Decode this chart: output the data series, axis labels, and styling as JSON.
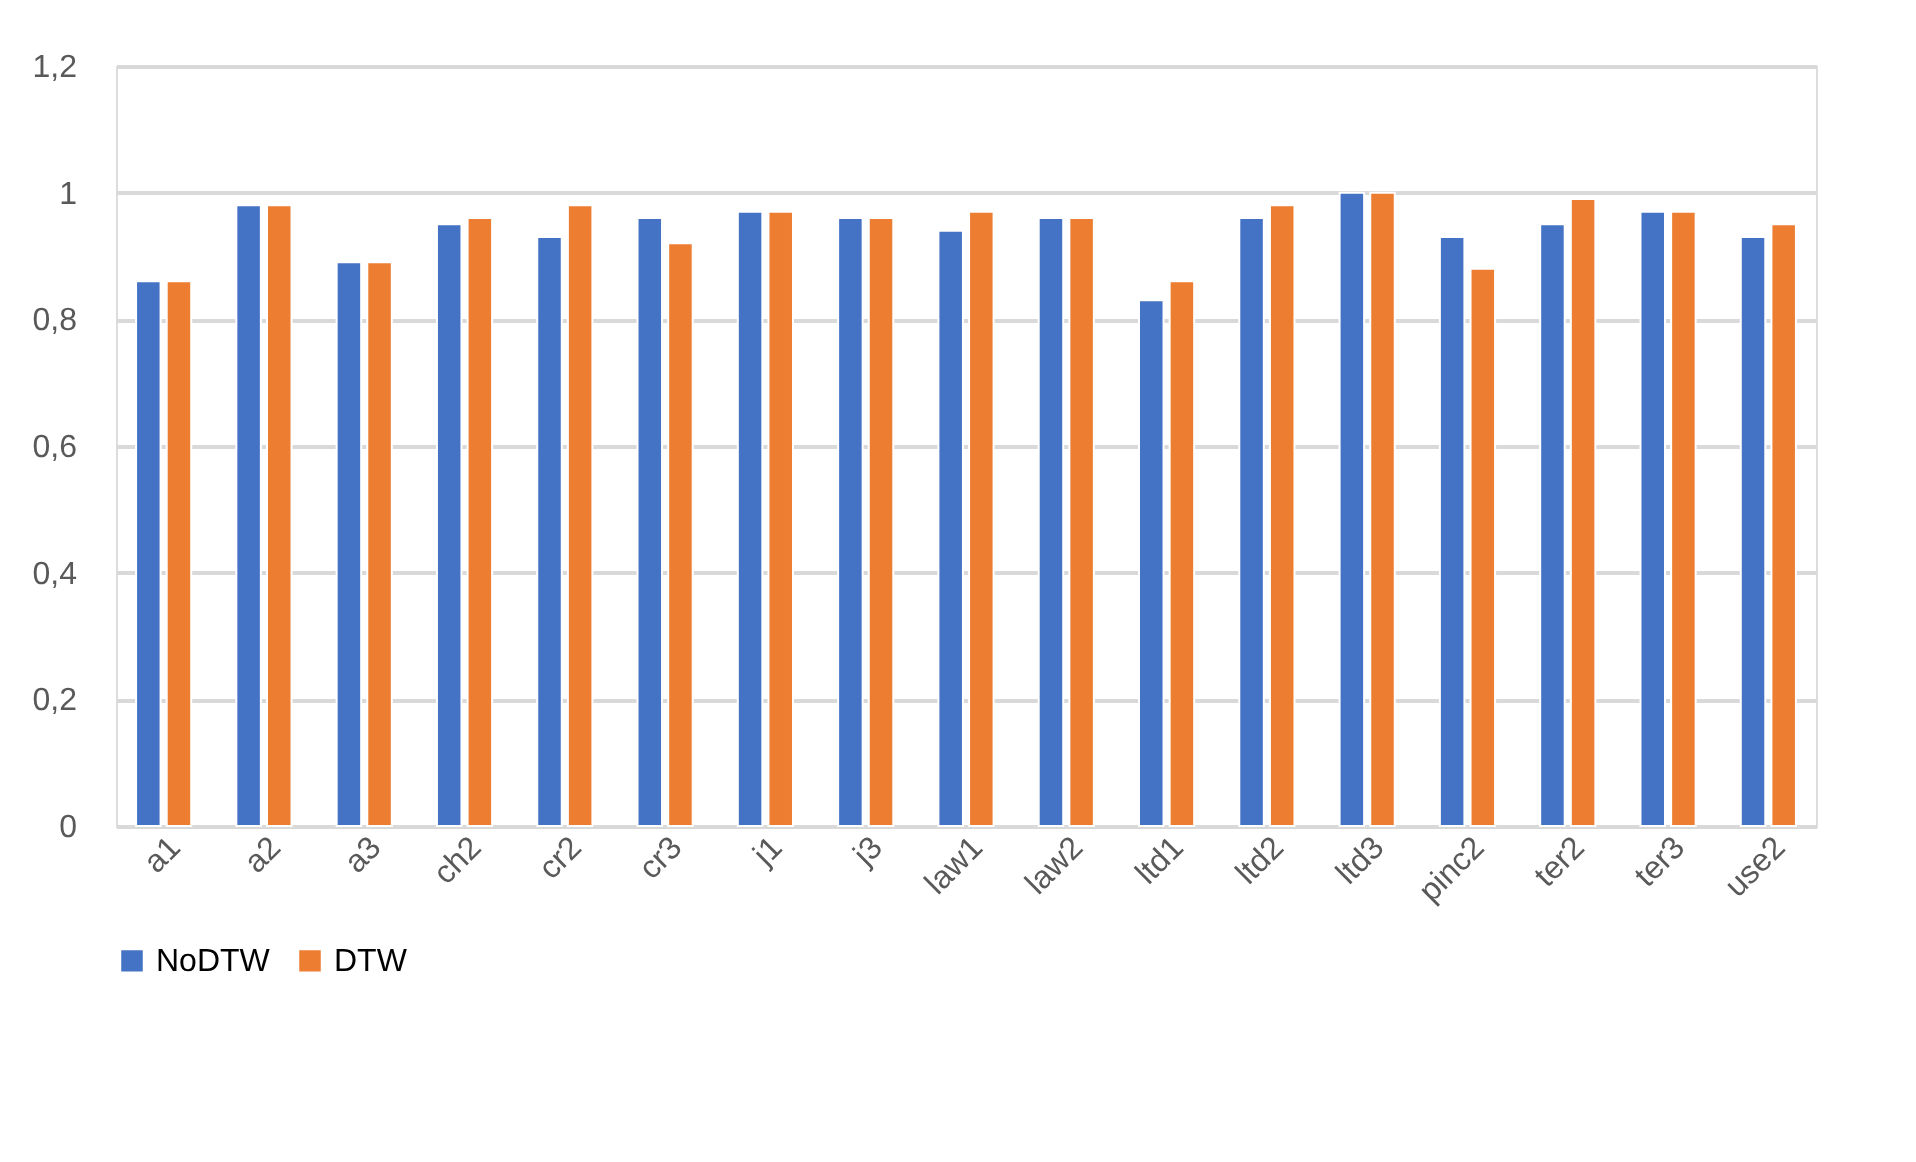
{
  "chart_data": {
    "type": "bar",
    "categories": [
      "a1",
      "a2",
      "a3",
      "ch2",
      "cr2",
      "cr3",
      "j1",
      "j3",
      "law1",
      "law2",
      "ltd1",
      "ltd2",
      "ltd3",
      "pinc2",
      "ter2",
      "ter3",
      "use2"
    ],
    "series": [
      {
        "name": "NoDTW",
        "color": "#4472c4",
        "values": [
          0.86,
          0.98,
          0.89,
          0.95,
          0.93,
          0.96,
          0.97,
          0.96,
          0.94,
          0.96,
          0.83,
          0.96,
          1.0,
          0.93,
          0.95,
          0.97,
          0.93
        ]
      },
      {
        "name": "DTW",
        "color": "#ed7d31",
        "values": [
          0.86,
          0.98,
          0.89,
          0.96,
          0.98,
          0.92,
          0.97,
          0.96,
          0.97,
          0.96,
          0.86,
          0.98,
          1.0,
          0.88,
          0.99,
          0.97,
          0.95
        ]
      }
    ],
    "ylim": [
      0,
      1.2
    ],
    "yticks": [
      0,
      {
        "value": 0.2,
        "label": "0,2"
      },
      {
        "value": 0.4,
        "label": "0,4"
      },
      {
        "value": 0.6,
        "label": "0,6"
      },
      {
        "value": 0.8,
        "label": "0,8"
      },
      1,
      {
        "value": 1.2,
        "label": "1,2"
      }
    ],
    "grid": "y",
    "legend": "bottom"
  }
}
